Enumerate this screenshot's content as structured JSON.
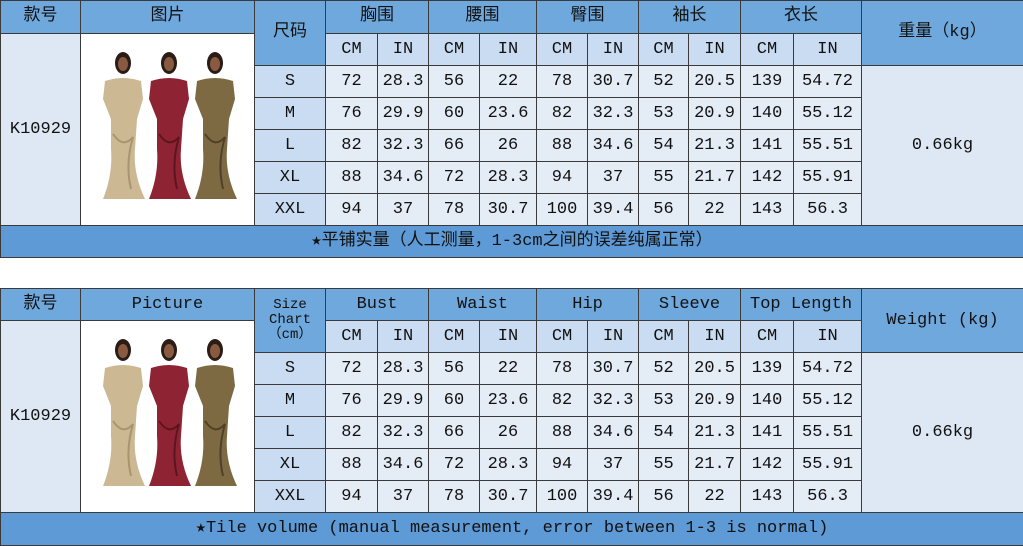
{
  "tables": [
    {
      "header": {
        "code": "款号",
        "picture": "图片",
        "size": "尺码",
        "measures": [
          "胸围",
          "腰围",
          "臀围",
          "袖长",
          "衣长"
        ],
        "weight": "重量（kg）"
      },
      "units": [
        "CM",
        "IN"
      ],
      "code": "K10929",
      "weight": "0.66kg",
      "rows": [
        {
          "size": "S",
          "values": [
            "72",
            "28.3",
            "56",
            "22",
            "78",
            "30.7",
            "52",
            "20.5",
            "139",
            "54.72"
          ]
        },
        {
          "size": "M",
          "values": [
            "76",
            "29.9",
            "60",
            "23.6",
            "82",
            "32.3",
            "53",
            "20.9",
            "140",
            "55.12"
          ]
        },
        {
          "size": "L",
          "values": [
            "82",
            "32.3",
            "66",
            "26",
            "88",
            "34.6",
            "54",
            "21.3",
            "141",
            "55.51"
          ]
        },
        {
          "size": "XL",
          "values": [
            "88",
            "34.6",
            "72",
            "28.3",
            "94",
            "37",
            "55",
            "21.7",
            "142",
            "55.91"
          ]
        },
        {
          "size": "XXL",
          "values": [
            "94",
            "37",
            "78",
            "30.7",
            "100",
            "39.4",
            "56",
            "22",
            "143",
            "56.3"
          ]
        }
      ],
      "footer": "★平铺实量（人工测量，1-3cm之间的误差纯属正常）"
    },
    {
      "header": {
        "code": "款号",
        "picture": "Picture",
        "size": "Size Chart （cm）",
        "measures": [
          "Bust",
          "Waist",
          "Hip",
          "Sleeve",
          "Top Length"
        ],
        "weight": "Weight (kg)"
      },
      "units": [
        "CM",
        "IN"
      ],
      "code": "K10929",
      "weight": "0.66kg",
      "rows": [
        {
          "size": "S",
          "values": [
            "72",
            "28.3",
            "56",
            "22",
            "78",
            "30.7",
            "52",
            "20.5",
            "139",
            "54.72"
          ]
        },
        {
          "size": "M",
          "values": [
            "76",
            "29.9",
            "60",
            "23.6",
            "82",
            "32.3",
            "53",
            "20.9",
            "140",
            "55.12"
          ]
        },
        {
          "size": "L",
          "values": [
            "82",
            "32.3",
            "66",
            "26",
            "88",
            "34.6",
            "54",
            "21.3",
            "141",
            "55.51"
          ]
        },
        {
          "size": "XL",
          "values": [
            "88",
            "34.6",
            "72",
            "28.3",
            "94",
            "37",
            "55",
            "21.7",
            "142",
            "55.91"
          ]
        },
        {
          "size": "XXL",
          "values": [
            "94",
            "37",
            "78",
            "30.7",
            "100",
            "39.4",
            "56",
            "22",
            "143",
            "56.3"
          ]
        }
      ],
      "footer": "★Tile volume (manual measurement, error between 1-3 is normal)"
    }
  ]
}
